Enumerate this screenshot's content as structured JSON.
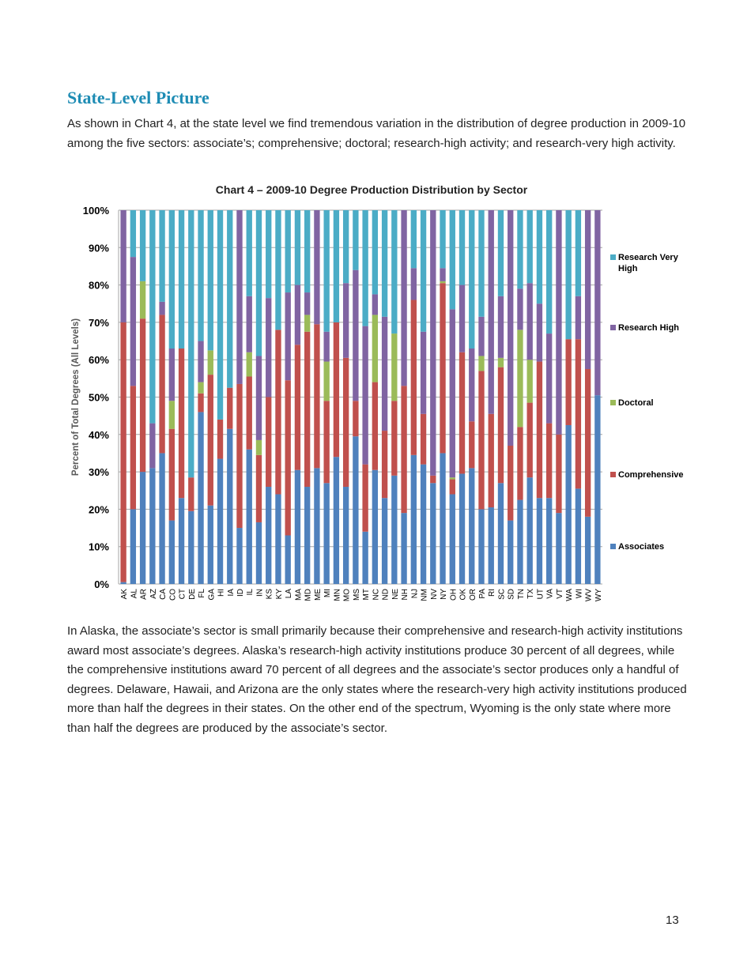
{
  "heading": "State-Level Picture",
  "intro": "As shown in Chart 4, at the state level we find tremendous variation in the distribution of degree production in 2009-10 among the five sectors: associate’s; comprehensive; doctoral; research-high activity; and research-very high activity.",
  "body": "In Alaska, the associate’s sector is small primarily because their comprehensive and research-high activity institutions award most associate’s degrees. Alaska’s research-high activity institutions produce 30 percent of all degrees, while the comprehensive institutions award 70 percent of all degrees and the associate’s sector produces only a handful of degrees. Delaware, Hawaii, and Arizona are the only states where the research-very high activity institutions produced more than half the degrees in their states. On the other end of the spectrum, Wyoming is the only state where more than half the degrees are produced by the associate’s sector.",
  "page_number": "13",
  "chart_data": {
    "type": "bar",
    "stacked": "percent",
    "title": "Chart 4 – 2009-10 Degree Production Distribution by Sector",
    "xlabel": "",
    "ylabel": "Percent of Total Degrees (All Levels)",
    "ylim": [
      0,
      100
    ],
    "yticks": [
      "0%",
      "10%",
      "20%",
      "30%",
      "40%",
      "50%",
      "60%",
      "70%",
      "80%",
      "90%",
      "100%"
    ],
    "grid": true,
    "legend_position": "right",
    "categories": [
      "AK",
      "AL",
      "AR",
      "AZ",
      "CA",
      "CO",
      "CT",
      "DE",
      "FL",
      "GA",
      "HI",
      "IA",
      "ID",
      "IL",
      "IN",
      "KS",
      "KY",
      "LA",
      "MA",
      "MD",
      "ME",
      "MI",
      "MN",
      "MO",
      "MS",
      "MT",
      "NC",
      "ND",
      "NE",
      "NH",
      "NJ",
      "NM",
      "NV",
      "NY",
      "OH",
      "OK",
      "OR",
      "PA",
      "RI",
      "SC",
      "SD",
      "TN",
      "TX",
      "UT",
      "VA",
      "VT",
      "WA",
      "WI",
      "WV",
      "WY"
    ],
    "series": [
      {
        "name": "Associates",
        "color": "#4F81BD",
        "values": [
          0.5,
          20,
          30,
          31,
          35,
          17,
          23,
          19.5,
          46,
          21,
          33.5,
          41.5,
          15,
          36,
          16.5,
          26,
          24,
          13,
          30.5,
          26,
          31,
          27,
          34,
          26,
          39.5,
          14,
          30.5,
          23,
          29,
          19,
          34.5,
          32,
          27,
          35,
          24,
          29.5,
          31,
          20,
          20.5,
          27,
          17,
          22.5,
          28.5,
          23,
          23,
          19,
          42.5,
          25.5,
          18,
          50.5
        ]
      },
      {
        "name": "Comprehensive",
        "color": "#C0504D",
        "values": [
          69.5,
          33,
          41,
          0,
          37,
          24.5,
          40,
          9,
          5,
          35,
          10.5,
          11,
          38.5,
          19.5,
          18,
          24,
          44,
          41.5,
          33.5,
          41.5,
          38.5,
          22,
          36,
          34.5,
          9.5,
          18,
          23.5,
          18,
          20,
          34,
          41.5,
          13.5,
          2,
          45.5,
          4,
          32.5,
          12.5,
          37,
          25,
          31,
          20,
          19.5,
          20,
          36.5,
          20,
          21,
          23,
          40,
          39.5,
          0
        ]
      },
      {
        "name": "Doctoral",
        "color": "#9BBB59",
        "values": [
          0,
          0,
          10,
          0,
          0,
          7.5,
          0,
          0,
          3,
          6.5,
          0,
          0,
          0,
          6.5,
          4,
          0,
          0,
          0,
          0,
          4.5,
          0,
          10.5,
          0,
          0,
          0,
          0,
          18,
          0,
          18,
          0,
          0,
          0,
          0,
          0.5,
          0.5,
          0,
          0,
          4,
          0,
          2.5,
          0,
          26,
          11.5,
          0,
          0,
          0,
          0,
          0,
          0,
          0
        ]
      },
      {
        "name": "Research High",
        "color": "#8064A2",
        "values": [
          30,
          34.5,
          0,
          12,
          3.5,
          14,
          0,
          0,
          11,
          0,
          0,
          0,
          46.5,
          15,
          22.5,
          26.5,
          0,
          23.5,
          16,
          6,
          30.5,
          8,
          0,
          20,
          35,
          37,
          5.5,
          30.5,
          0,
          47,
          8.5,
          22,
          71,
          3.5,
          45,
          18,
          19.5,
          10.5,
          54.5,
          16.5,
          63,
          11,
          20.5,
          15.5,
          24,
          60,
          0,
          11.5,
          42.5,
          49.5
        ]
      },
      {
        "name": "Research Very High",
        "color": "#4BACC6",
        "values": [
          0,
          12.5,
          19,
          57,
          24.5,
          37,
          37,
          71.5,
          35,
          37.5,
          56,
          47.5,
          0,
          23,
          39,
          23.5,
          32,
          22,
          20,
          22,
          0,
          32.5,
          30,
          19.5,
          16,
          31,
          22.5,
          28.5,
          33,
          0,
          15.5,
          32.5,
          0,
          15.5,
          26.5,
          20,
          37,
          28.5,
          0,
          23,
          0,
          21,
          19.5,
          25,
          33,
          0,
          34.5,
          23,
          0,
          0
        ]
      }
    ]
  }
}
